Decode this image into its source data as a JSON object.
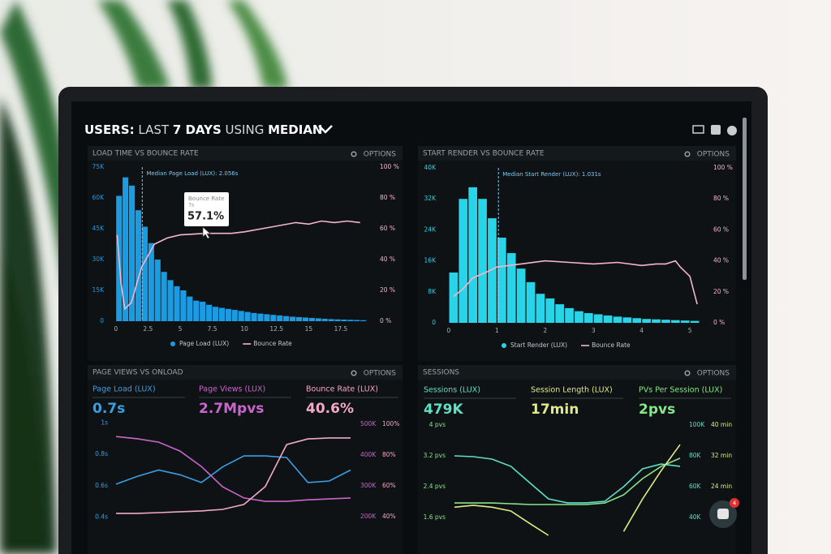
{
  "header": {
    "title_parts": [
      "USERS:",
      "LAST",
      "7 DAYS",
      "USING",
      "MEDIAN"
    ]
  },
  "widget": {
    "badge": "4"
  },
  "chart_data": [
    {
      "type": "combo",
      "title": "LOAD TIME VS BOUNCE RATE",
      "options": "OPTIONS",
      "xlim": [
        -0.3,
        19.9
      ],
      "xticks": [
        0,
        2.5,
        5,
        7.5,
        10,
        12.5,
        15,
        17.5
      ],
      "ylim": [
        0,
        75000
      ],
      "yticks": [
        0,
        {
          "value": 15000,
          "label": "15K"
        },
        {
          "value": 30000,
          "label": "30K"
        },
        {
          "value": 45000,
          "label": "45K"
        },
        {
          "value": 60000,
          "label": "60K"
        },
        {
          "value": 75000,
          "label": "75K"
        }
      ],
      "y2lim": [
        0,
        100
      ],
      "y2ticks": [
        {
          "value": 0,
          "label": "0 %"
        },
        {
          "value": 20,
          "label": "20 %"
        },
        {
          "value": 40,
          "label": "40 %"
        },
        {
          "value": 60,
          "label": "60 %"
        },
        {
          "value": 80,
          "label": "80 %"
        },
        {
          "value": 100,
          "label": "100 %"
        }
      ],
      "annotation": {
        "text": "Median Page Load (LUX): 2.056s",
        "x": 2.056
      },
      "tooltip": {
        "label": "Bounce Rate",
        "x_label": "7s",
        "value_label": "57.1%"
      },
      "series": [
        {
          "name": "Page Load (LUX)",
          "type": "bar",
          "color": "#1b9be2",
          "x": [
            0.25,
            0.75,
            1.25,
            1.75,
            2.25,
            2.75,
            3.25,
            3.75,
            4.25,
            4.75,
            5.25,
            5.75,
            6.25,
            6.75,
            7.25,
            7.75,
            8.25,
            8.75,
            9.25,
            9.75,
            10.25,
            10.75,
            11.25,
            11.75,
            12.25,
            12.75,
            13.25,
            13.75,
            14.25,
            14.75,
            15.25,
            15.75,
            16.25,
            16.75,
            17.25,
            17.75,
            18.25,
            18.75,
            19.25
          ],
          "values": [
            61000,
            70000,
            66000,
            54000,
            46000,
            38000,
            30000,
            24000,
            20000,
            17000,
            15000,
            12000,
            10000,
            9500,
            8000,
            7000,
            6500,
            6000,
            5500,
            5000,
            4500,
            4000,
            3700,
            3400,
            3100,
            2800,
            2500,
            2200,
            2000,
            1800,
            1600,
            1400,
            1200,
            1000,
            900,
            800,
            700,
            600,
            500
          ]
        },
        {
          "name": "Bounce Rate",
          "type": "line",
          "axis": "y2",
          "color": "#f4b6c8",
          "x": [
            0.1,
            0.4,
            0.7,
            1.2,
            2,
            3,
            4,
            5,
            7,
            9,
            10,
            12,
            14,
            15,
            16,
            17,
            18,
            19
          ],
          "values": [
            56,
            25,
            8,
            12,
            35,
            50,
            54,
            56,
            57,
            57,
            58,
            61,
            64,
            63,
            65,
            64,
            65,
            64
          ]
        }
      ]
    },
    {
      "type": "combo",
      "title": "START RENDER VS BOUNCE RATE",
      "options": "OPTIONS",
      "xlim": [
        -0.1,
        5.25
      ],
      "xticks": [
        0,
        1,
        2,
        3,
        4,
        5
      ],
      "ylim": [
        0,
        40000
      ],
      "yticks": [
        0,
        {
          "value": 8000,
          "label": "8K"
        },
        {
          "value": 16000,
          "label": "16K"
        },
        {
          "value": 24000,
          "label": "24K"
        },
        {
          "value": 32000,
          "label": "32K"
        },
        {
          "value": 40000,
          "label": "40K"
        }
      ],
      "y2lim": [
        0,
        100
      ],
      "y2ticks": [
        {
          "value": 0,
          "label": "0 %"
        },
        {
          "value": 20,
          "label": "20 %"
        },
        {
          "value": 40,
          "label": "40 %"
        },
        {
          "value": 60,
          "label": "60 %"
        },
        {
          "value": 80,
          "label": "80 %"
        },
        {
          "value": 100,
          "label": "100 %"
        }
      ],
      "annotation": {
        "text": "Median Start Render (LUX): 1.031s",
        "x": 1.031
      },
      "series": [
        {
          "name": "Start Render (LUX)",
          "type": "bar",
          "color": "#27d4e8",
          "x": [
            0.1,
            0.3,
            0.5,
            0.7,
            0.9,
            1.1,
            1.3,
            1.5,
            1.7,
            1.9,
            2.1,
            2.3,
            2.5,
            2.7,
            2.9,
            3.1,
            3.3,
            3.5,
            3.7,
            3.9,
            4.1,
            4.3,
            4.5,
            4.7,
            4.9,
            5.1
          ],
          "values": [
            13000,
            32000,
            35000,
            32000,
            27000,
            22000,
            18000,
            14000,
            10500,
            7500,
            6300,
            4800,
            3800,
            3000,
            2500,
            2200,
            1900,
            1600,
            1400,
            1200,
            1000,
            900,
            800,
            700,
            600,
            500
          ]
        },
        {
          "name": "Bounce Rate",
          "type": "line",
          "axis": "y2",
          "color": "#f4b6c8",
          "x": [
            0.1,
            0.3,
            0.5,
            0.8,
            1,
            1.5,
            2,
            2.5,
            3,
            3.5,
            4,
            4.3,
            4.5,
            4.7,
            4.8,
            5,
            5.15
          ],
          "values": [
            17,
            22,
            29,
            33,
            36,
            38,
            40,
            39,
            38,
            39,
            37,
            38,
            38,
            40,
            36,
            30,
            12
          ]
        }
      ]
    },
    {
      "type": "line",
      "title": "PAGE VIEWS VS ONLOAD",
      "options": "OPTIONS",
      "metrics": [
        {
          "label": "Page Load (LUX)",
          "value": "0.7s",
          "color": "#3a9fe2"
        },
        {
          "label": "Page Views (LUX)",
          "value": "2.7Mpvs",
          "color": "#c866cc"
        },
        {
          "label": "Bounce Rate (LUX)",
          "value": "40.6%",
          "color": "#f3a8c6"
        }
      ],
      "categories": [
        null,
        null,
        null,
        null,
        null,
        null,
        null,
        null,
        null,
        null,
        null,
        null
      ],
      "ylim": [
        0.35,
        1.05
      ],
      "yticks": [
        {
          "value": 1,
          "label": "1s"
        },
        {
          "value": 0.8,
          "label": "0.8s"
        },
        {
          "value": 0.6,
          "label": "0.6s"
        },
        {
          "value": 0.4,
          "label": "0.4s"
        }
      ],
      "y2lim": [
        174000,
        529000
      ],
      "y2ticks": [
        {
          "value": 500000,
          "label": "500K"
        },
        {
          "value": 400000,
          "label": "400K"
        },
        {
          "value": 300000,
          "label": "300K"
        },
        {
          "value": 200000,
          "label": "200K"
        }
      ],
      "y3lim": [
        34.7,
        105.8
      ],
      "y3ticks": [
        {
          "value": 100,
          "label": "100%"
        },
        {
          "value": 80,
          "label": "80%"
        },
        {
          "value": 60,
          "label": "60%"
        },
        {
          "value": 40,
          "label": "40%"
        }
      ],
      "series": [
        {
          "name": "Page Load (LUX)",
          "color": "#3a9fe2",
          "values": [
            0.61,
            0.66,
            0.7,
            0.67,
            0.62,
            0.72,
            0.79,
            0.79,
            0.78,
            0.62,
            0.63,
            0.7
          ]
        },
        {
          "name": "Page Views (LUX)",
          "color": "#c866cc",
          "axis": "y2",
          "values": [
            460000,
            453000,
            442000,
            413000,
            363000,
            297000,
            261000,
            250000,
            250000,
            255000,
            258000,
            261000
          ]
        },
        {
          "name": "Bounce Rate (LUX)",
          "color": "#f3a8c6",
          "axis": "y3",
          "values": [
            42.1,
            42.1,
            42.6,
            43.2,
            43.7,
            44.7,
            47.9,
            59.5,
            86.8,
            90.5,
            91.1,
            91.1
          ]
        }
      ]
    },
    {
      "type": "line",
      "title": "SESSIONS",
      "options": "OPTIONS",
      "metrics": [
        {
          "label": "Sessions (LUX)",
          "value": "479K",
          "color": "#5fe0c4"
        },
        {
          "label": "Session Length (LUX)",
          "value": "17min",
          "color": "#e0ea84"
        },
        {
          "label": "PVs Per Session (LUX)",
          "value": "2pvs",
          "color": "#86e68a"
        }
      ],
      "categories": [
        null,
        null,
        null,
        null,
        null,
        null,
        null,
        null,
        null,
        null,
        null,
        null,
        null
      ],
      "ylim": [
        1.14,
        4.21
      ],
      "yticks": [
        {
          "value": 4,
          "label": "4 pvs"
        },
        {
          "value": 3.2,
          "label": "3.2 pvs"
        },
        {
          "value": 2.4,
          "label": "2.4 pvs"
        },
        {
          "value": 1.6,
          "label": "1.6 pvs"
        }
      ],
      "y2lim": [
        28400,
        105300
      ],
      "y2ticks": [
        {
          "value": 100000,
          "label": "100K"
        },
        {
          "value": 80000,
          "label": "80K"
        },
        {
          "value": 60000,
          "label": "60K"
        },
        {
          "value": 40000,
          "label": "40K"
        }
      ],
      "y3lim": [
        11.4,
        42.1
      ],
      "y3ticks": [
        {
          "value": 40,
          "label": "40 min"
        },
        {
          "value": 32,
          "label": "32 min"
        },
        {
          "value": 24,
          "label": "24 min"
        },
        {
          "value": 16,
          "label": "16 min"
        }
      ],
      "series": [
        {
          "name": "PVs Per Session (LUX)",
          "color": "#86e68a",
          "values": [
            1.98,
            1.98,
            1.98,
            1.96,
            1.94,
            1.94,
            1.94,
            1.94,
            1.98,
            2.19,
            2.61,
            2.93,
            3.14
          ]
        },
        {
          "name": "Sessions (LUX)",
          "color": "#5fe0c4",
          "axis": "y2",
          "values": [
            80000,
            79500,
            77900,
            73200,
            62600,
            52100,
            49500,
            49500,
            50500,
            60000,
            71600,
            74700,
            73200
          ]
        },
        {
          "name": "Session Length (LUX)",
          "color": "#e0ea84",
          "axis": "y3",
          "values": [
            18.7,
            19.2,
            18.7,
            17.7,
            14.5,
            11.4,
            null,
            null,
            null,
            12.4,
            20.8,
            28.2,
            34.9
          ]
        }
      ]
    }
  ]
}
